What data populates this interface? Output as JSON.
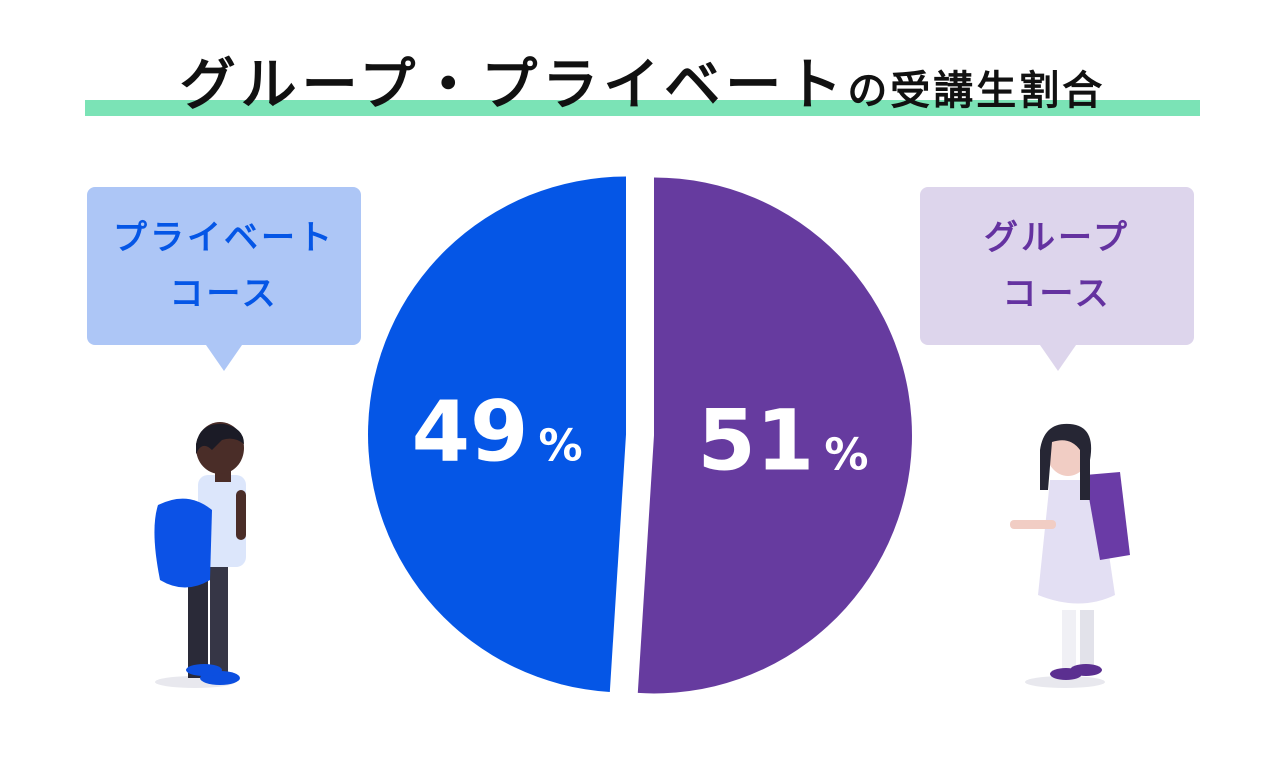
{
  "title": {
    "main": "グループ・プライベート",
    "suffix": "の受講生割合"
  },
  "legend": {
    "private": {
      "line1": "プライベート",
      "line2": "コース"
    },
    "group": {
      "line1": "グループ",
      "line2": "コース"
    }
  },
  "colors": {
    "private": "#0556e6",
    "group": "#663b9f",
    "accent_bar": "#7be3b6"
  },
  "chart_data": {
    "type": "pie",
    "title": "グループ・プライベートの受講生割合",
    "slices": [
      {
        "label": "プライベートコース",
        "value": 49,
        "display": "49",
        "unit": "%",
        "color": "#0556e6"
      },
      {
        "label": "グループコース",
        "value": 51,
        "display": "51",
        "unit": "%",
        "color": "#663b9f"
      }
    ]
  }
}
